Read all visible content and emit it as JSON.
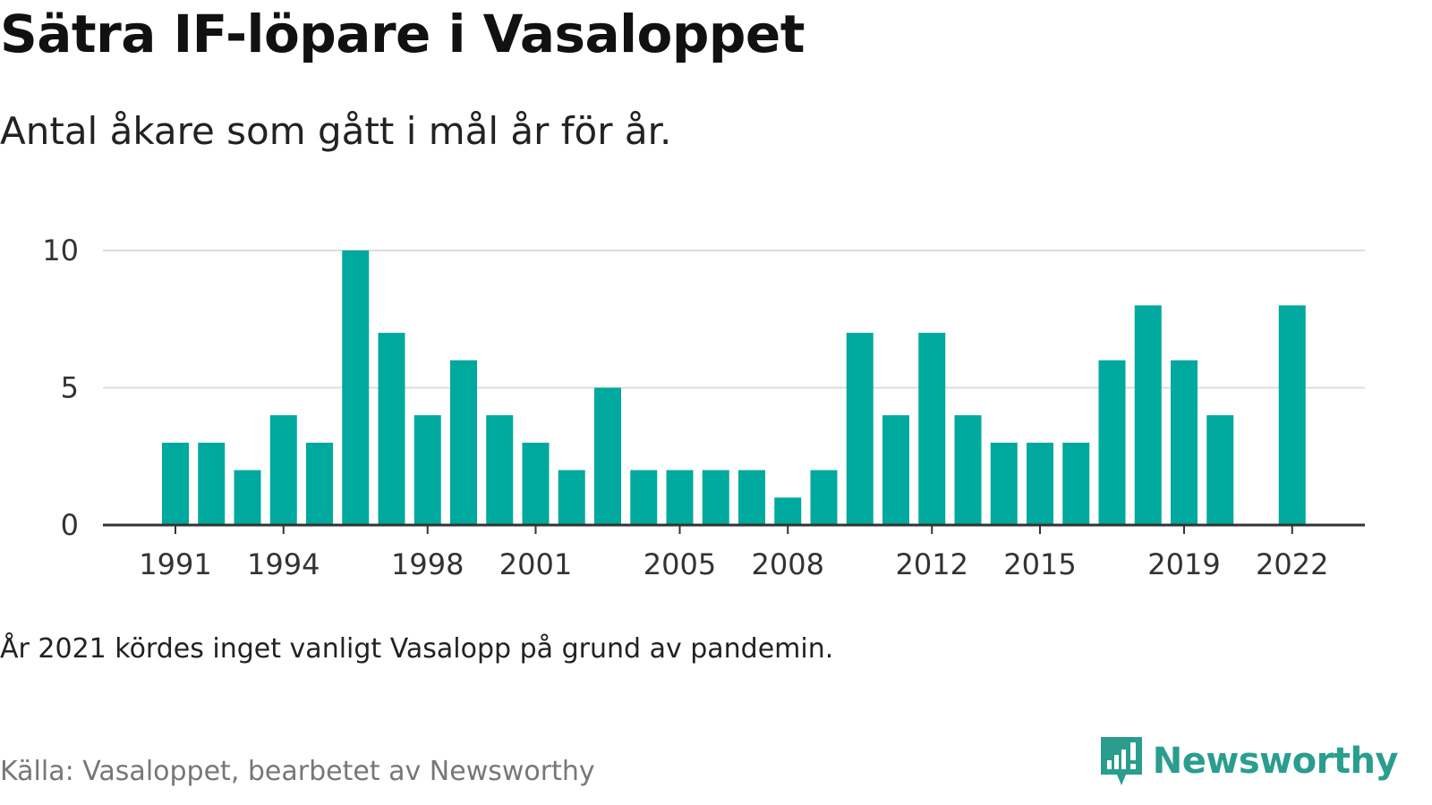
{
  "title": "Sätra IF-löpare i Vasaloppet",
  "subtitle": "Antal åkare som gått i mål år för år.",
  "note": "År 2021 kördes inget vanligt Vasalopp på grund av pandemin.",
  "source": "Källa: Vasaloppet, bearbetet av Newsworthy",
  "brand": {
    "name": "Newsworthy",
    "icon": "newsworthy-logo-icon",
    "color": "#2a9d8f"
  },
  "chart_data": {
    "type": "bar",
    "color": "#00a99d",
    "grid": true,
    "ylim": [
      0,
      10
    ],
    "yticks": [
      0,
      5,
      10
    ],
    "xticks": [
      "1991",
      "1994",
      "1998",
      "2001",
      "2005",
      "2008",
      "2012",
      "2015",
      "2019",
      "2022"
    ],
    "categories": [
      "1991",
      "1992",
      "1993",
      "1994",
      "1995",
      "1996",
      "1997",
      "1998",
      "1999",
      "2000",
      "2001",
      "2002",
      "2003",
      "2004",
      "2005",
      "2006",
      "2007",
      "2008",
      "2009",
      "2010",
      "2011",
      "2012",
      "2013",
      "2014",
      "2015",
      "2016",
      "2017",
      "2018",
      "2019",
      "2020",
      "2021",
      "2022"
    ],
    "values": [
      3,
      3,
      2,
      4,
      3,
      10,
      7,
      4,
      6,
      4,
      3,
      2,
      5,
      2,
      2,
      2,
      2,
      1,
      2,
      7,
      4,
      7,
      4,
      3,
      3,
      3,
      6,
      8,
      6,
      4,
      null,
      8
    ]
  }
}
